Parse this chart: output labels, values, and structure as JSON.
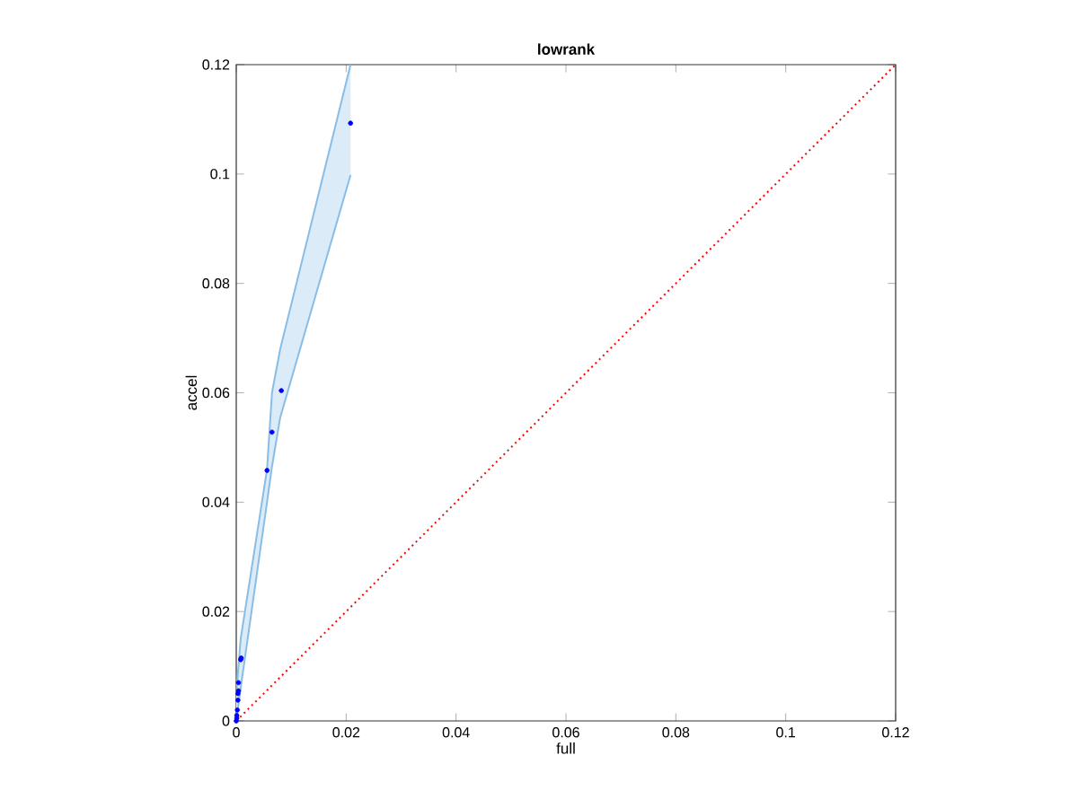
{
  "chart_data": {
    "type": "scatter",
    "title": "lowrank",
    "xlabel": "full",
    "ylabel": "accel",
    "xlim": [
      0,
      0.12
    ],
    "ylim": [
      0,
      0.12
    ],
    "xticks": [
      0,
      0.02,
      0.04,
      0.06,
      0.08,
      0.1,
      0.12
    ],
    "yticks": [
      0,
      0.02,
      0.04,
      0.06,
      0.08,
      0.1,
      0.12
    ],
    "grid": false,
    "series": [
      {
        "type": "line",
        "color": "#88bde6",
        "x": [
          0,
          0.0008,
          0.0056,
          0.0065,
          0.008,
          0.0208
        ],
        "values": [
          0.005,
          0.015,
          0.046,
          0.06,
          0.068,
          0.12
        ],
        "lower": [
          0,
          0.006,
          0.04,
          0.0465,
          0.0555,
          0.0998
        ],
        "upper": [
          0.005,
          0.015,
          0.046,
          0.06,
          0.068,
          0.12
        ]
      },
      {
        "type": "line",
        "color": "#88bde6",
        "x": [
          0,
          0.0008,
          0.0056,
          0.0065,
          0.008,
          0.0208
        ],
        "values": [
          0,
          0.006,
          0.04,
          0.0465,
          0.0555,
          0.0998
        ]
      },
      {
        "type": "line",
        "color": "#ff0000",
        "line_style": "dotted",
        "marker": "none",
        "x": [
          0,
          0.12
        ],
        "values": [
          0,
          0.12
        ]
      },
      {
        "type": "scatter",
        "color": "#0000ff",
        "marker": "circle",
        "x": [
          0,
          0.0001,
          0.0001,
          0.0002,
          0.0003,
          0.0003,
          0.0004,
          0.0004,
          0.0008,
          0.0009,
          0.0056,
          0.0065,
          0.0082,
          0.0208
        ],
        "values": [
          0,
          0.0005,
          0.001,
          0.002,
          0.0038,
          0.005,
          0.0055,
          0.007,
          0.0112,
          0.0115,
          0.0458,
          0.0528,
          0.0604,
          0.1093
        ]
      }
    ]
  }
}
